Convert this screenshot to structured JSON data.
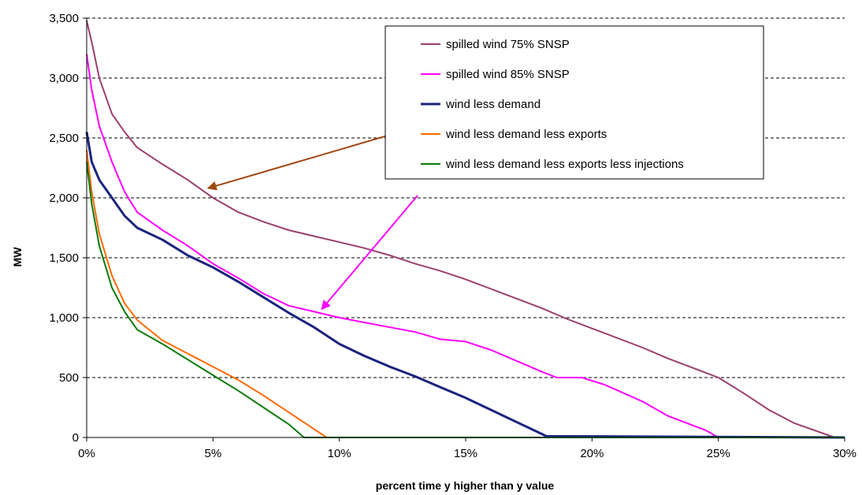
{
  "chart_data": {
    "type": "line",
    "title": "",
    "xlabel": "percent time y higher than y value",
    "ylabel": "MW",
    "xlim": [
      0,
      30
    ],
    "ylim": [
      0,
      3500
    ],
    "x_ticks": [
      0,
      5,
      10,
      15,
      20,
      25,
      30
    ],
    "x_tick_labels": [
      "0%",
      "5%",
      "10%",
      "15%",
      "20%",
      "25%",
      "30%"
    ],
    "y_ticks": [
      0,
      500,
      1000,
      1500,
      2000,
      2500,
      3000,
      3500
    ],
    "y_tick_labels": [
      "0",
      "500",
      "1,000",
      "1,500",
      "2,000",
      "2,500",
      "3,000",
      "3,500"
    ],
    "grid": "horizontal-dashed",
    "legend_position": "top-right",
    "series": [
      {
        "name": "spilled wind 75% SNSP",
        "color": "#9b3f6e",
        "points": [
          [
            0,
            3480
          ],
          [
            0.2,
            3300
          ],
          [
            0.5,
            3000
          ],
          [
            1,
            2700
          ],
          [
            1.5,
            2550
          ],
          [
            2,
            2420
          ],
          [
            3,
            2280
          ],
          [
            4,
            2150
          ],
          [
            5,
            2000
          ],
          [
            6,
            1880
          ],
          [
            7,
            1800
          ],
          [
            8,
            1730
          ],
          [
            9,
            1680
          ],
          [
            10,
            1630
          ],
          [
            11,
            1580
          ],
          [
            12,
            1520
          ],
          [
            13,
            1450
          ],
          [
            14,
            1390
          ],
          [
            15,
            1320
          ],
          [
            16,
            1240
          ],
          [
            17,
            1160
          ],
          [
            18,
            1080
          ],
          [
            19,
            990
          ],
          [
            20,
            910
          ],
          [
            21,
            830
          ],
          [
            22,
            750
          ],
          [
            23,
            660
          ],
          [
            24,
            580
          ],
          [
            25,
            500
          ],
          [
            26,
            370
          ],
          [
            27,
            230
          ],
          [
            28,
            120
          ],
          [
            29.6,
            0
          ],
          [
            30,
            0
          ]
        ]
      },
      {
        "name": "spilled wind 85% SNSP",
        "color": "#ff00ff",
        "points": [
          [
            0,
            3200
          ],
          [
            0.2,
            2900
          ],
          [
            0.5,
            2600
          ],
          [
            1,
            2300
          ],
          [
            1.5,
            2050
          ],
          [
            2,
            1880
          ],
          [
            3,
            1730
          ],
          [
            4,
            1600
          ],
          [
            5,
            1450
          ],
          [
            6,
            1330
          ],
          [
            7,
            1200
          ],
          [
            8,
            1100
          ],
          [
            9,
            1050
          ],
          [
            10,
            1000
          ],
          [
            11,
            960
          ],
          [
            12,
            920
          ],
          [
            13,
            880
          ],
          [
            14,
            820
          ],
          [
            15,
            800
          ],
          [
            16,
            730
          ],
          [
            17,
            640
          ],
          [
            18,
            550
          ],
          [
            18.6,
            500
          ],
          [
            19.6,
            500
          ],
          [
            20.5,
            440
          ],
          [
            22,
            300
          ],
          [
            23,
            180
          ],
          [
            24.5,
            60
          ],
          [
            25,
            0
          ],
          [
            30,
            0
          ]
        ]
      },
      {
        "name": "wind less demand",
        "color": "#1a237e",
        "points": [
          [
            0,
            2550
          ],
          [
            0.2,
            2300
          ],
          [
            0.5,
            2150
          ],
          [
            1,
            2000
          ],
          [
            1.5,
            1850
          ],
          [
            2,
            1750
          ],
          [
            3,
            1650
          ],
          [
            4,
            1520
          ],
          [
            5,
            1420
          ],
          [
            6,
            1300
          ],
          [
            7,
            1170
          ],
          [
            8,
            1040
          ],
          [
            9,
            920
          ],
          [
            10,
            780
          ],
          [
            11,
            680
          ],
          [
            12,
            590
          ],
          [
            13,
            510
          ],
          [
            14,
            420
          ],
          [
            15,
            330
          ],
          [
            16,
            230
          ],
          [
            17,
            130
          ],
          [
            18,
            30
          ],
          [
            18.2,
            10
          ],
          [
            19,
            10
          ],
          [
            30,
            0
          ]
        ]
      },
      {
        "name": "wind less demand less exports",
        "color": "#ff6a00",
        "points": [
          [
            0,
            2400
          ],
          [
            0.2,
            2050
          ],
          [
            0.5,
            1700
          ],
          [
            1,
            1350
          ],
          [
            1.5,
            1120
          ],
          [
            2,
            980
          ],
          [
            3,
            810
          ],
          [
            4,
            700
          ],
          [
            5,
            590
          ],
          [
            6,
            480
          ],
          [
            7,
            350
          ],
          [
            8,
            210
          ],
          [
            9,
            70
          ],
          [
            9.5,
            0
          ],
          [
            30,
            0
          ]
        ]
      },
      {
        "name": "wind less demand less exports less injections",
        "color": "#0a7a0a",
        "points": [
          [
            0,
            2300
          ],
          [
            0.2,
            1950
          ],
          [
            0.5,
            1600
          ],
          [
            1,
            1250
          ],
          [
            1.5,
            1050
          ],
          [
            2,
            900
          ],
          [
            3,
            780
          ],
          [
            4,
            650
          ],
          [
            5,
            520
          ],
          [
            6,
            390
          ],
          [
            7,
            250
          ],
          [
            8,
            110
          ],
          [
            8.6,
            0
          ],
          [
            30,
            0
          ]
        ]
      }
    ],
    "annotations": [
      {
        "type": "arrow",
        "color": "#a0460f",
        "from": [
          13.2,
          2600
        ],
        "to": [
          4.8,
          2080
        ]
      },
      {
        "type": "arrow",
        "color": "#ff00ff",
        "from": [
          13.1,
          2020
        ],
        "to": [
          9.3,
          1070
        ]
      }
    ]
  }
}
